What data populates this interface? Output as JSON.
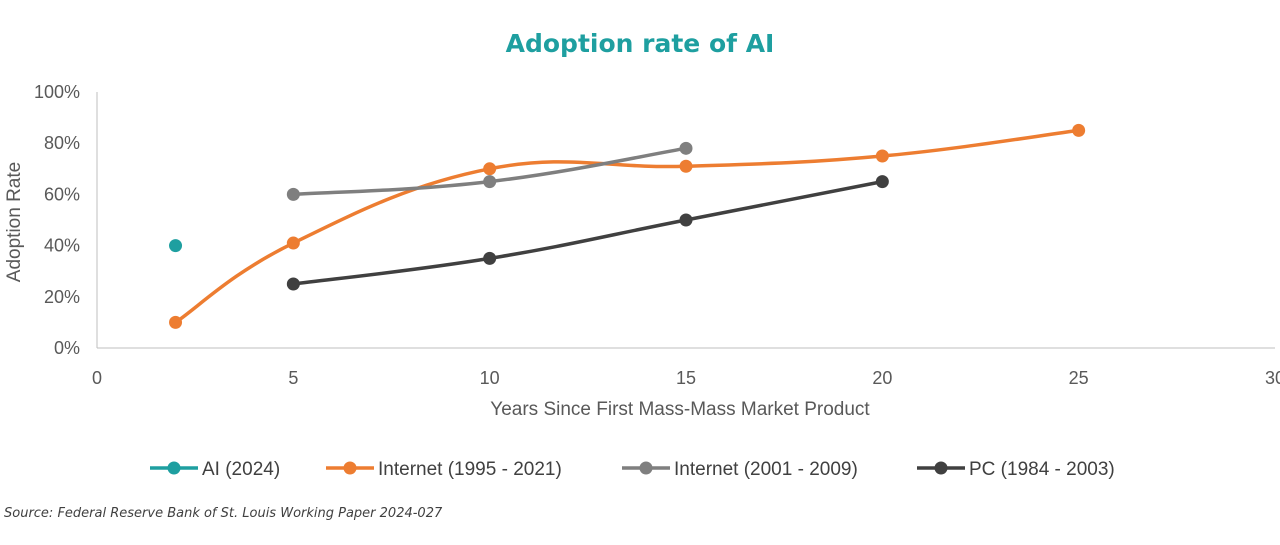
{
  "chart_data": {
    "type": "line",
    "title": "Adoption rate of AI",
    "xlabel": "Years Since First Mass-Mass Market Product",
    "ylabel": "Adoption Rate",
    "xlim": [
      0,
      30
    ],
    "ylim": [
      0,
      100
    ],
    "x_ticks": [
      0,
      5,
      10,
      15,
      20,
      25,
      30
    ],
    "y_ticks": [
      0,
      20,
      40,
      60,
      80,
      100
    ],
    "y_tick_suffix": "%",
    "grid": false,
    "legend_position": "bottom",
    "series": [
      {
        "name": "AI (2024)",
        "color": "#1E9FA0",
        "smooth": false,
        "points": [
          [
            2,
            40
          ]
        ]
      },
      {
        "name": "Internet (1995 - 2021)",
        "color": "#ED7D31",
        "smooth": true,
        "points": [
          [
            2,
            10
          ],
          [
            5,
            41
          ],
          [
            10,
            70
          ],
          [
            15,
            71
          ],
          [
            20,
            75
          ],
          [
            25,
            85
          ]
        ]
      },
      {
        "name": "Internet (2001 - 2009)",
        "color": "#7F7F7F",
        "smooth": true,
        "points": [
          [
            5,
            60
          ],
          [
            10,
            65
          ],
          [
            15,
            78
          ]
        ]
      },
      {
        "name": "PC (1984 - 2003)",
        "color": "#404040",
        "smooth": true,
        "points": [
          [
            5,
            25
          ],
          [
            10,
            35
          ],
          [
            15,
            50
          ],
          [
            20,
            65
          ]
        ]
      }
    ]
  },
  "title_color": "#1E9FA0",
  "source": "Source: Federal Reserve Bank of St. Louis Working Paper 2024-027"
}
